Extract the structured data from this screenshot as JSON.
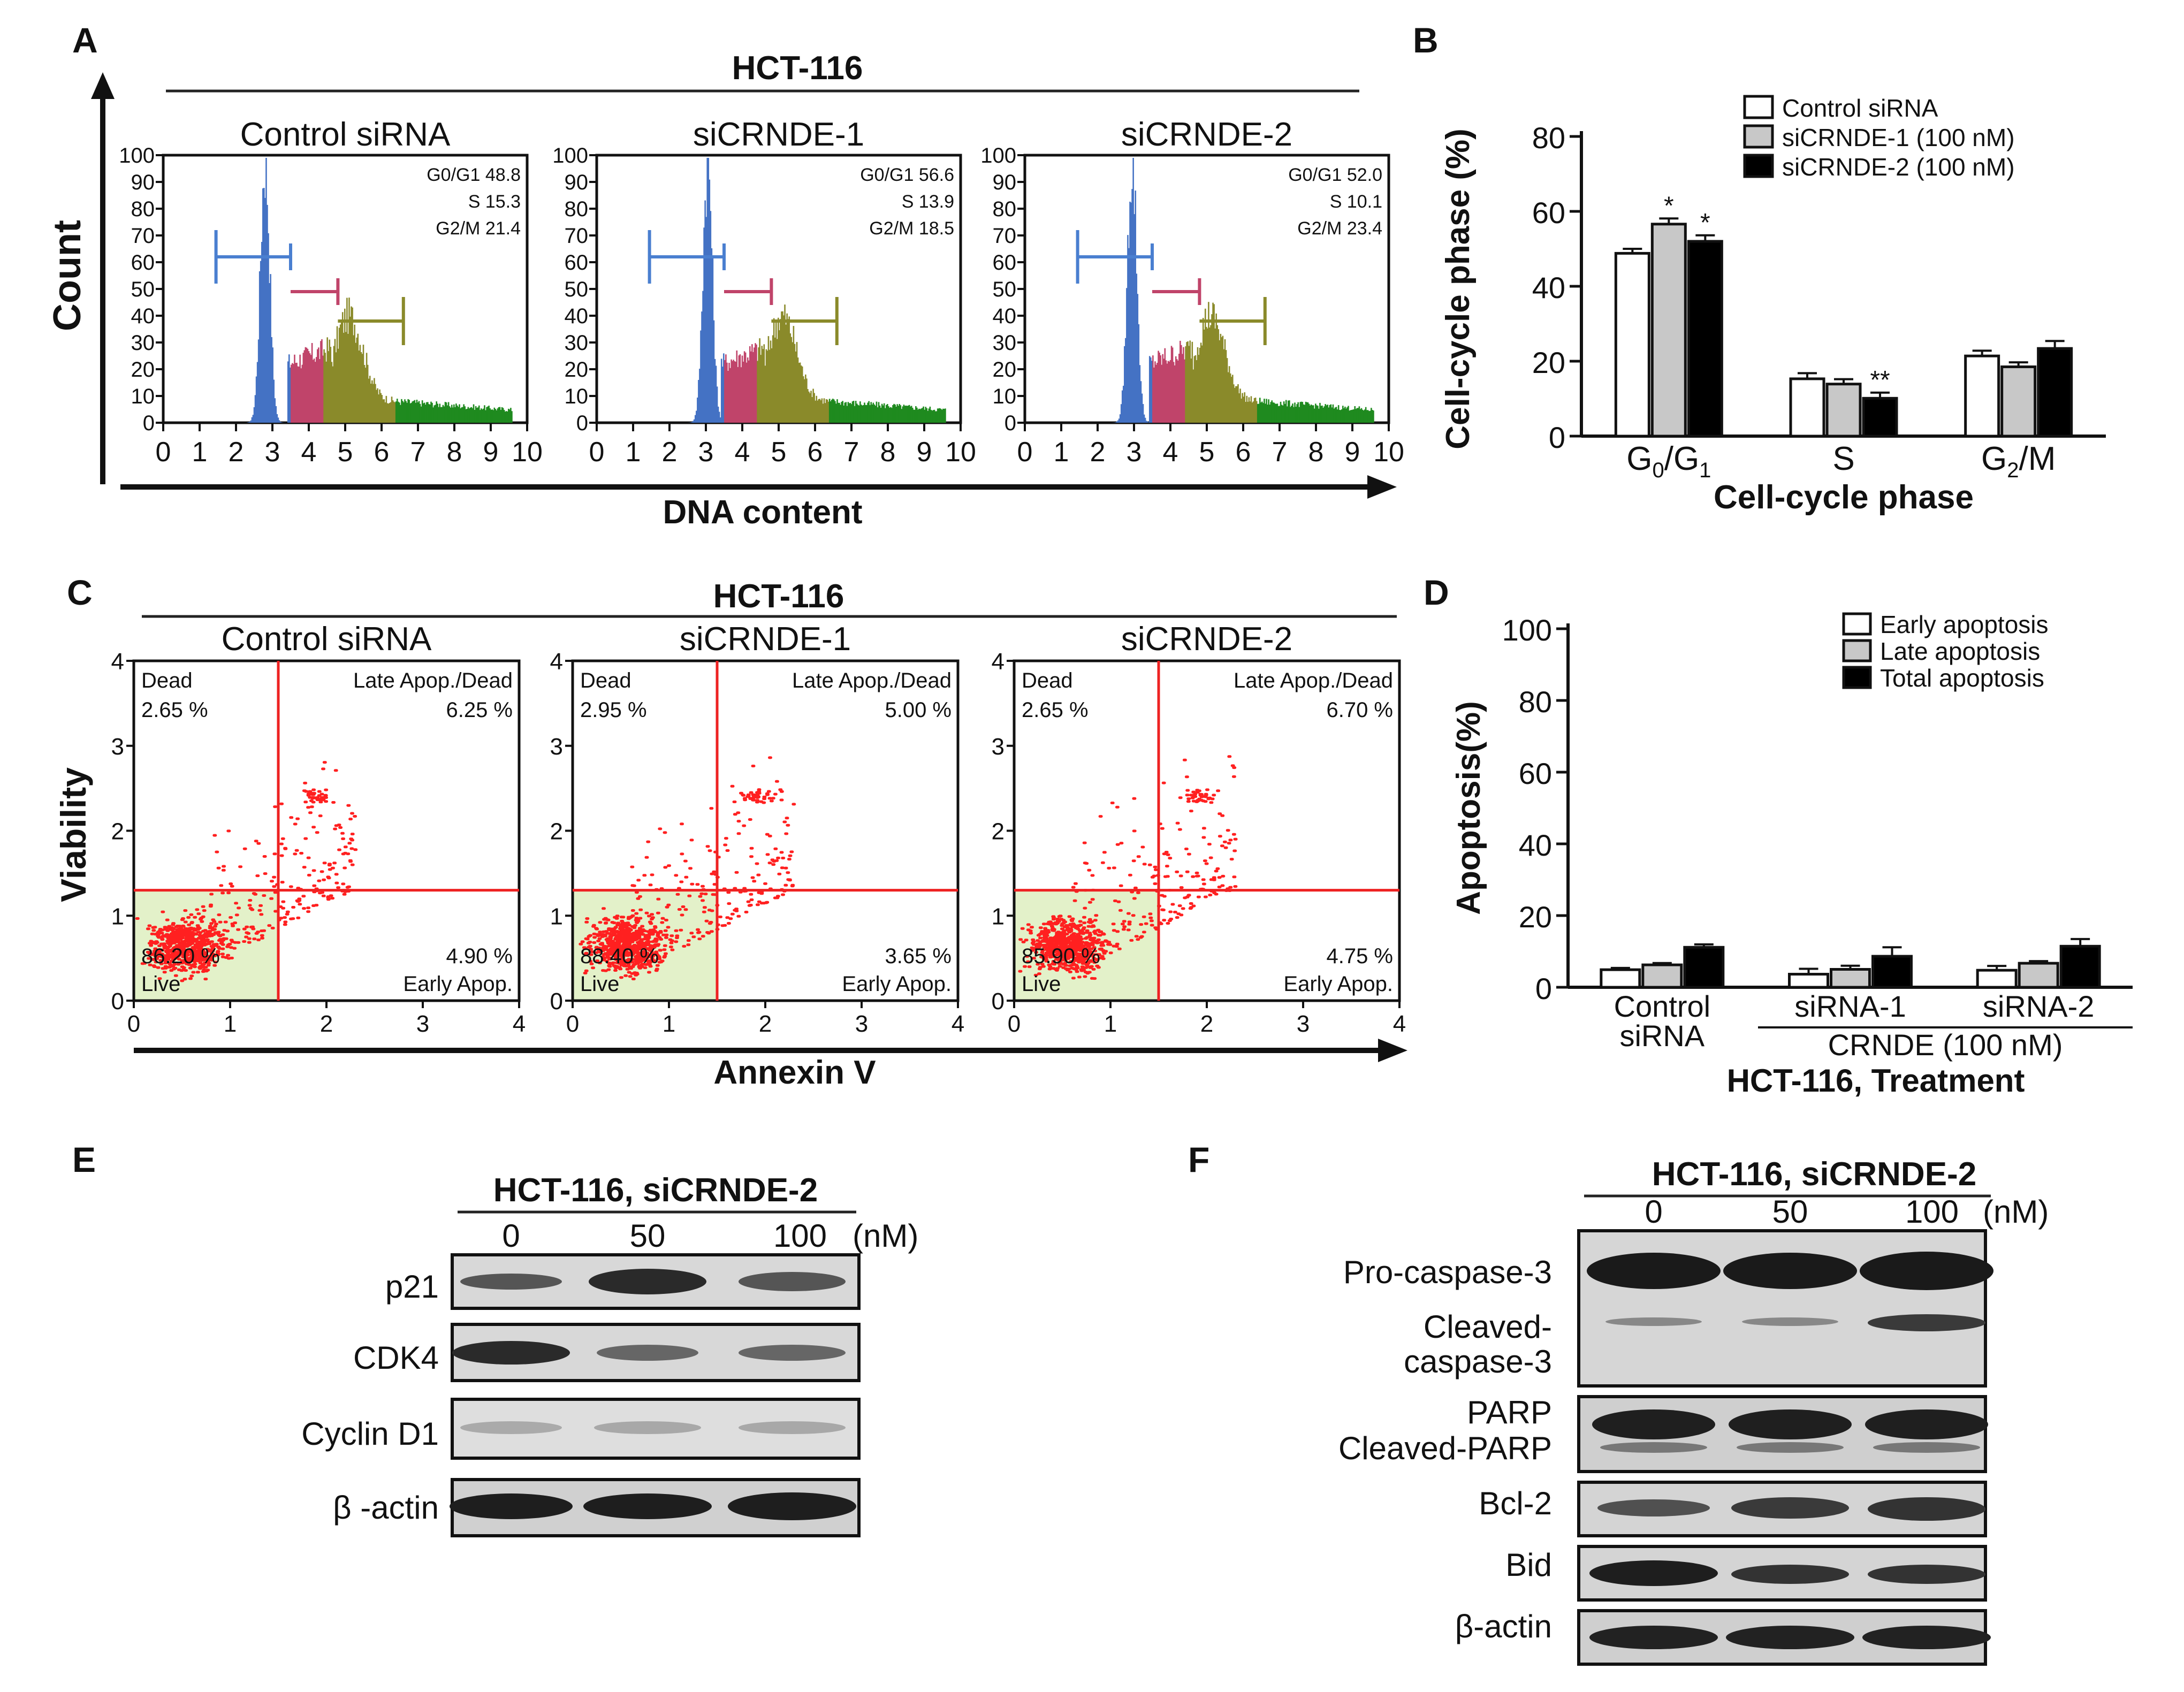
{
  "panel_letters": [
    "A",
    "B",
    "C",
    "D",
    "E",
    "F"
  ],
  "panel_a": {
    "title": "HCT-116",
    "y_label": "Count",
    "x_label": "DNA content",
    "y_ticks": [
      "0",
      "10",
      "20",
      "30",
      "40",
      "50",
      "60",
      "70",
      "80",
      "90",
      "100"
    ],
    "x_ticks": [
      "0",
      "1",
      "2",
      "3",
      "4",
      "5",
      "6",
      "7",
      "8",
      "9",
      "10"
    ],
    "plots": [
      {
        "name": "Control siRNA",
        "g0g1": "G0/G1 48.8",
        "s": "S 15.3",
        "g2m": "G2/M 21.4"
      },
      {
        "name": "siCRNDE-1",
        "g0g1": "G0/G1 56.6",
        "s": "S 13.9",
        "g2m": "G2/M 18.5"
      },
      {
        "name": "siCRNDE-2",
        "g0g1": "G0/G1 52.0",
        "s": "S 10.1",
        "g2m": "G2/M 23.4"
      }
    ],
    "colors": {
      "g1": "#4472c4",
      "s": "#c0446a",
      "g2": "#8a8a2a",
      "tail": "#1f8a1f"
    }
  },
  "panel_c": {
    "title": "HCT-116",
    "y_label": "Viability",
    "x_label": "Annexin V",
    "y_ticks": [
      "0",
      "1",
      "2",
      "3",
      "4"
    ],
    "x_ticks": [
      "0",
      "1",
      "2",
      "3",
      "4"
    ],
    "plots": [
      {
        "name": "Control siRNA",
        "dead_label": "Dead",
        "dead": "2.65 %",
        "late_label": "Late Apop./Dead",
        "late": "6.25 %",
        "live_label": "Live",
        "live": "86.20 %",
        "early_label": "Early Apop.",
        "early": "4.90 %"
      },
      {
        "name": "siCRNDE-1",
        "dead_label": "Dead",
        "dead": "2.95 %",
        "late_label": "Late Apop./Dead",
        "late": "5.00 %",
        "live_label": "Live",
        "live": "88.40 %",
        "early_label": "Early Apop.",
        "early": "3.65 %"
      },
      {
        "name": "siCRNDE-2",
        "dead_label": "Dead",
        "dead": "2.65 %",
        "late_label": "Late Apop./Dead",
        "late": "6.70 %",
        "live_label": "Live",
        "live": "85.90 %",
        "early_label": "Early Apop.",
        "early": "4.75 %"
      }
    ]
  },
  "panel_e": {
    "title": "HCT-116, siCRNDE-2",
    "doses": [
      "0",
      "50",
      "100"
    ],
    "unit": "(nM)",
    "bands": [
      "p21",
      "CDK4",
      "Cyclin D1",
      "β -actin"
    ]
  },
  "panel_f": {
    "title": "HCT-116, siCRNDE-2",
    "doses": [
      "0",
      "50",
      "100"
    ],
    "unit": "(nM)",
    "labels": {
      "pro_casp": "Pro-caspase-3",
      "cleaved_casp_1": "Cleaved-",
      "cleaved_casp_2": "caspase-3",
      "parp": "PARP",
      "cleaved_parp": "Cleaved-PARP",
      "bcl2": "Bcl-2",
      "bid": "Bid",
      "actin": "β-actin"
    }
  },
  "chart_data": [
    {
      "panel": "B",
      "type": "bar",
      "ylabel": "Cell-cycle phase (%)",
      "xlabel": "Cell-cycle phase",
      "categories": [
        "G0/G1",
        "S",
        "G2/M"
      ],
      "ylim": [
        0,
        80
      ],
      "yticks": [
        "0",
        "20",
        "40",
        "60",
        "80"
      ],
      "legend_position": "top-right",
      "series": [
        {
          "name": "Control siRNA",
          "color": "#ffffff",
          "values": [
            48.8,
            15.3,
            21.4
          ],
          "errors": [
            1.2,
            1.5,
            1.4
          ],
          "marks": [
            "",
            "",
            ""
          ]
        },
        {
          "name": "siCRNDE-1 (100 nM)",
          "color": "#c8c8c8",
          "values": [
            56.6,
            13.9,
            18.5
          ],
          "errors": [
            1.5,
            1.3,
            1.2
          ],
          "marks": [
            "*",
            "",
            ""
          ]
        },
        {
          "name": "siCRNDE-2 (100 nM)",
          "color": "#000000",
          "values": [
            52.0,
            10.1,
            23.4
          ],
          "errors": [
            1.6,
            1.5,
            2.0
          ],
          "marks": [
            "*",
            "**",
            ""
          ]
        }
      ]
    },
    {
      "panel": "D",
      "type": "bar",
      "ylabel": "Apoptosis(%)",
      "xlabel": "HCT-116, Treatment",
      "categories": [
        "Control siRNA",
        "siRNA-1",
        "siRNA-2"
      ],
      "category_lines": [
        [
          "Control",
          "siRNA"
        ],
        [
          "siRNA-1"
        ],
        [
          "siRNA-2"
        ]
      ],
      "group_label": "CRNDE (100 nM)",
      "ylim": [
        0,
        100
      ],
      "yticks": [
        "0",
        "20",
        "40",
        "60",
        "80",
        "100"
      ],
      "legend_position": "top-right",
      "series": [
        {
          "name": "Early apoptosis",
          "color": "#ffffff",
          "values": [
            4.9,
            3.65,
            4.75
          ],
          "errors": [
            0.5,
            1.5,
            1.2
          ]
        },
        {
          "name": "Late apoptosis",
          "color": "#c8c8c8",
          "values": [
            6.25,
            5.0,
            6.7
          ],
          "errors": [
            0.5,
            1.0,
            0.6
          ]
        },
        {
          "name": "Total apoptosis",
          "color": "#000000",
          "values": [
            11.15,
            8.65,
            11.45
          ],
          "errors": [
            0.8,
            2.5,
            2.0
          ]
        }
      ]
    }
  ]
}
